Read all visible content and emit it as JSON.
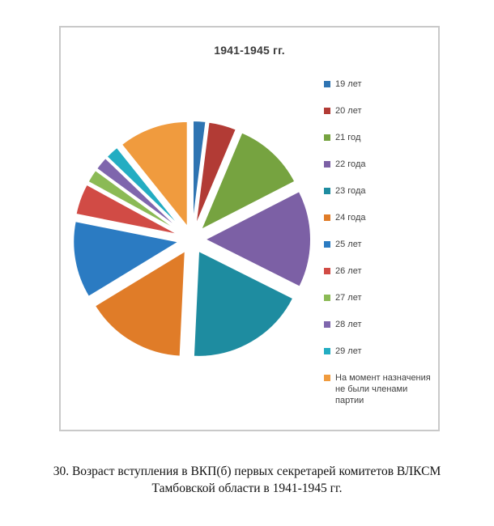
{
  "figure": {
    "caption_lines": [
      "30. Возраст вступления в ВКП(б) первых секретарей комитетов ВЛКСМ",
      "Тамбовской области в 1941-1945 гг."
    ]
  },
  "chart_data": {
    "type": "pie",
    "title": "1941-1945 гг.",
    "legend_position": "right",
    "exploded": true,
    "start_angle_deg": 0,
    "direction": "clockwise",
    "unit": "%",
    "slices": [
      {
        "label": "19 лет",
        "value": 2.0,
        "color": "#2e74b2"
      },
      {
        "label": "20 лет",
        "value": 4.3,
        "color": "#b23b35"
      },
      {
        "label": "21 год",
        "value": 11.1,
        "color": "#76a340"
      },
      {
        "label": "22 года",
        "value": 14.9,
        "color": "#7c60a5"
      },
      {
        "label": "23 года",
        "value": 18.3,
        "color": "#1e8ca0"
      },
      {
        "label": "24 года",
        "value": 15.5,
        "color": "#e07c28"
      },
      {
        "label": "25 лет",
        "value": 11.8,
        "color": "#2b7bc2"
      },
      {
        "label": "26 лет",
        "value": 4.8,
        "color": "#d14b45"
      },
      {
        "label": "27 лет",
        "value": 2.1,
        "color": "#8bba55"
      },
      {
        "label": "28 лет",
        "value": 2.1,
        "color": "#7f66ad"
      },
      {
        "label": "29 лет",
        "value": 2.1,
        "color": "#23adc2"
      },
      {
        "label": "На момент назначения не были членами партии",
        "value": 10.7,
        "color": "#f09b3e"
      }
    ]
  }
}
